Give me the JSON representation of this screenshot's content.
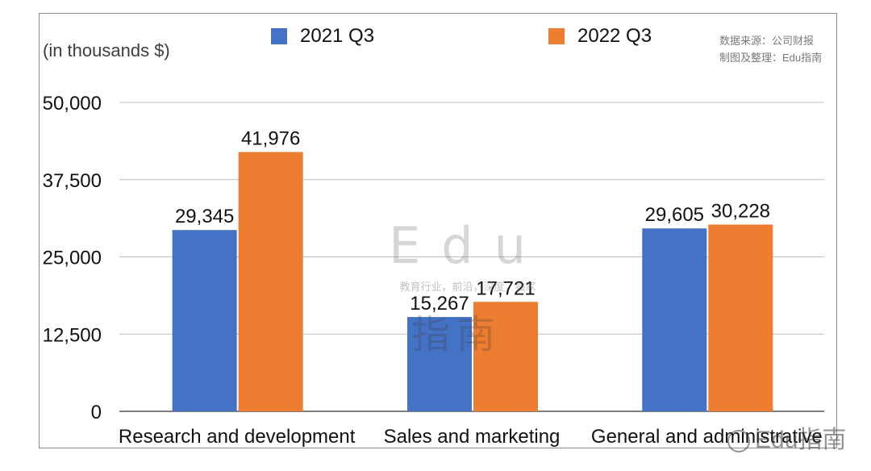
{
  "chart_data": {
    "type": "bar",
    "unit_label": "(in thousands $)",
    "categories": [
      "Research and development",
      "Sales and marketing",
      "General and administrative"
    ],
    "series": [
      {
        "name": "2021 Q3",
        "color": "#4472C4",
        "values": [
          29345,
          15267,
          29605
        ]
      },
      {
        "name": "2022 Q3",
        "color": "#ED7D31",
        "values": [
          41976,
          17721,
          30228
        ]
      }
    ],
    "data_labels": [
      [
        "29,345",
        "15,267",
        "29,605"
      ],
      [
        "41,976",
        "17,721",
        "30,228"
      ]
    ],
    "yticks": [
      "0",
      "12,500",
      "25,000",
      "37,500",
      "50,000"
    ],
    "ylim": [
      0,
      50000
    ],
    "grid": true,
    "legend_position": "top"
  },
  "source_note": {
    "line1": "数据来源：公司财报",
    "line2": "制图及整理：Edu指南"
  },
  "watermark": {
    "main": "Edu",
    "sub": "教育行业，前沿，深度，独家",
    "logo": "指南"
  },
  "account_watermark": "Edu指南"
}
